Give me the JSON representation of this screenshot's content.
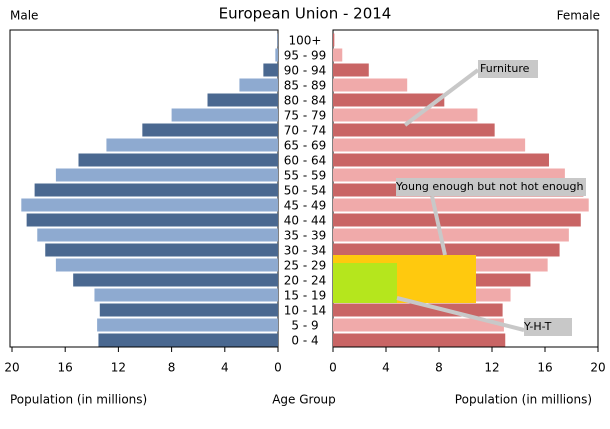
{
  "chart_data": {
    "type": "pyramid",
    "title": "European Union - 2014",
    "left_label": "Male",
    "right_label": "Female",
    "x_label_left": "Population (in millions)",
    "x_label_right": "Population (in millions)",
    "center_label": "Age Group",
    "categories": [
      "0 - 4",
      "5 - 9",
      "10 - 14",
      "15 - 19",
      "20 - 24",
      "25 - 29",
      "30 - 34",
      "35 - 39",
      "40 - 44",
      "45 - 49",
      "50 - 54",
      "55 - 59",
      "60 - 64",
      "65 - 69",
      "70 - 74",
      "75 - 79",
      "80 - 84",
      "85 - 89",
      "90 - 94",
      "95 - 99",
      "100+"
    ],
    "series": [
      {
        "name": "Male",
        "colors": [
          "#4a6890",
          "#8eaad0"
        ],
        "values": [
          13.5,
          13.6,
          13.4,
          13.8,
          15.4,
          16.7,
          17.5,
          18.1,
          18.9,
          19.3,
          18.3,
          16.7,
          15.0,
          12.9,
          10.2,
          8.0,
          5.3,
          2.9,
          1.1,
          0.2,
          0.05
        ]
      },
      {
        "name": "Female",
        "colors": [
          "#c96565",
          "#f0aaaa"
        ],
        "values": [
          13.0,
          12.9,
          12.8,
          13.4,
          14.9,
          16.2,
          17.1,
          17.8,
          18.7,
          19.3,
          18.9,
          17.5,
          16.3,
          14.5,
          12.2,
          10.9,
          8.4,
          5.6,
          2.7,
          0.7,
          0.1
        ]
      }
    ],
    "xlim": [
      0,
      20
    ],
    "xticks": [
      0,
      4,
      8,
      12,
      16,
      20
    ],
    "annotations": [
      "Furniture",
      "Young enough but not hot enough",
      "Y-H-T"
    ]
  }
}
